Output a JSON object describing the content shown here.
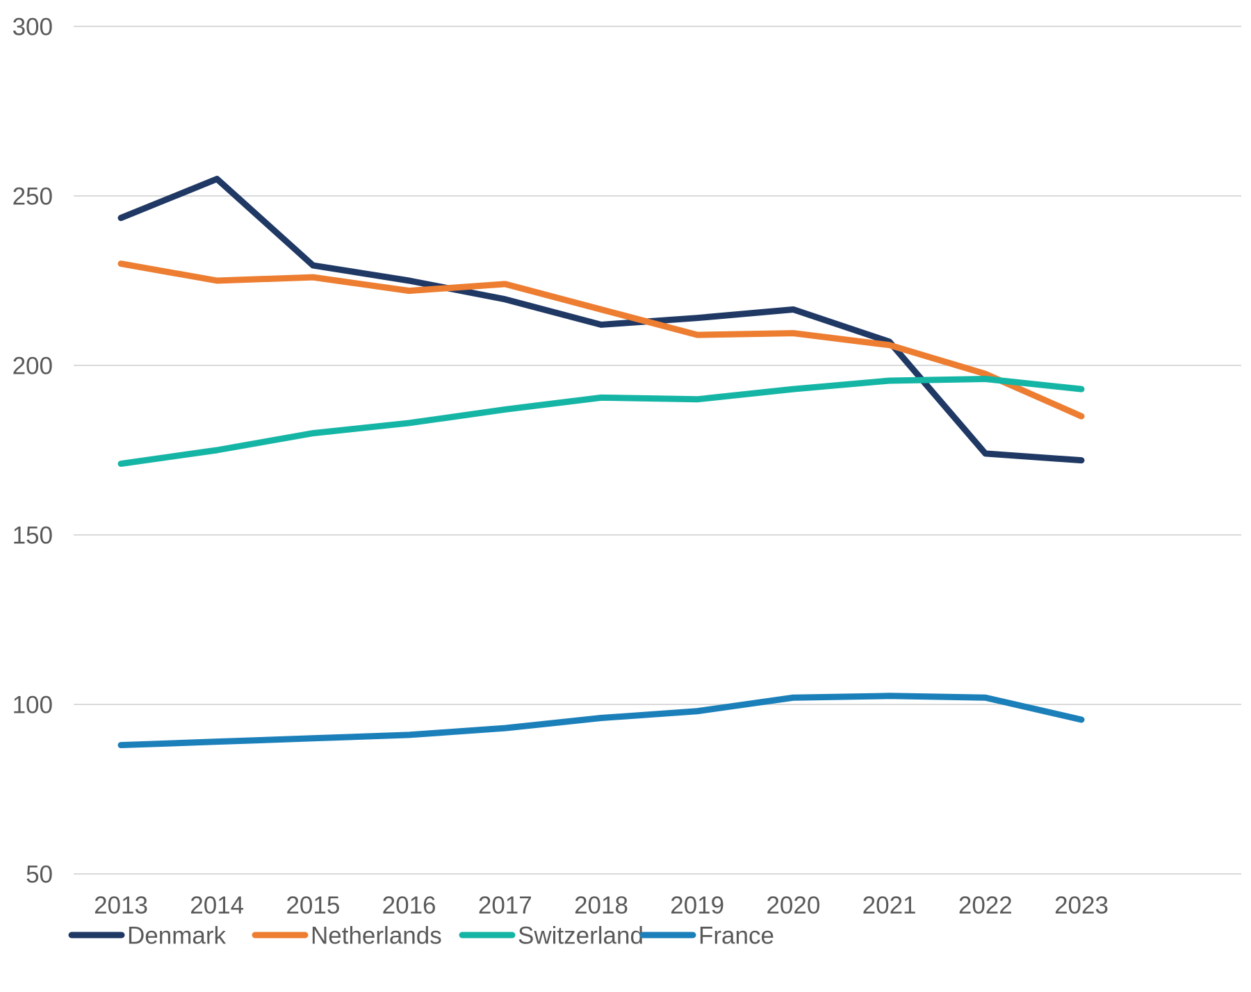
{
  "chart_data": {
    "type": "line",
    "title": "",
    "xlabel": "",
    "ylabel": "",
    "x": [
      2013,
      2014,
      2015,
      2016,
      2017,
      2018,
      2019,
      2020,
      2021,
      2022,
      2023
    ],
    "series": [
      {
        "name": "Denmark",
        "color": "#1f3864",
        "values": [
          243.5,
          255,
          229.5,
          225,
          219.5,
          212,
          214,
          216.5,
          207,
          174,
          172
        ]
      },
      {
        "name": "Netherlands",
        "color": "#ed7d31",
        "values": [
          230,
          225,
          226,
          222,
          224,
          216.5,
          209,
          209.5,
          206,
          197.5,
          185
        ]
      },
      {
        "name": "Switzerland",
        "color": "#15b5a5",
        "values": [
          171,
          175,
          180,
          183,
          187,
          190.5,
          190,
          193,
          195.5,
          196,
          193
        ]
      },
      {
        "name": "France",
        "color": "#1b7fb9",
        "values": [
          88,
          89,
          90,
          91,
          93,
          96,
          98,
          102,
          102.5,
          102,
          95.5
        ]
      }
    ],
    "ylim": [
      50,
      300
    ],
    "yticks": [
      300,
      250,
      200,
      150,
      100,
      50
    ],
    "grid": true,
    "legend_position": "bottom-left",
    "axis_text_color": "#595959",
    "gridline_color": "#d9d9d9",
    "background_color": "#ffffff"
  }
}
